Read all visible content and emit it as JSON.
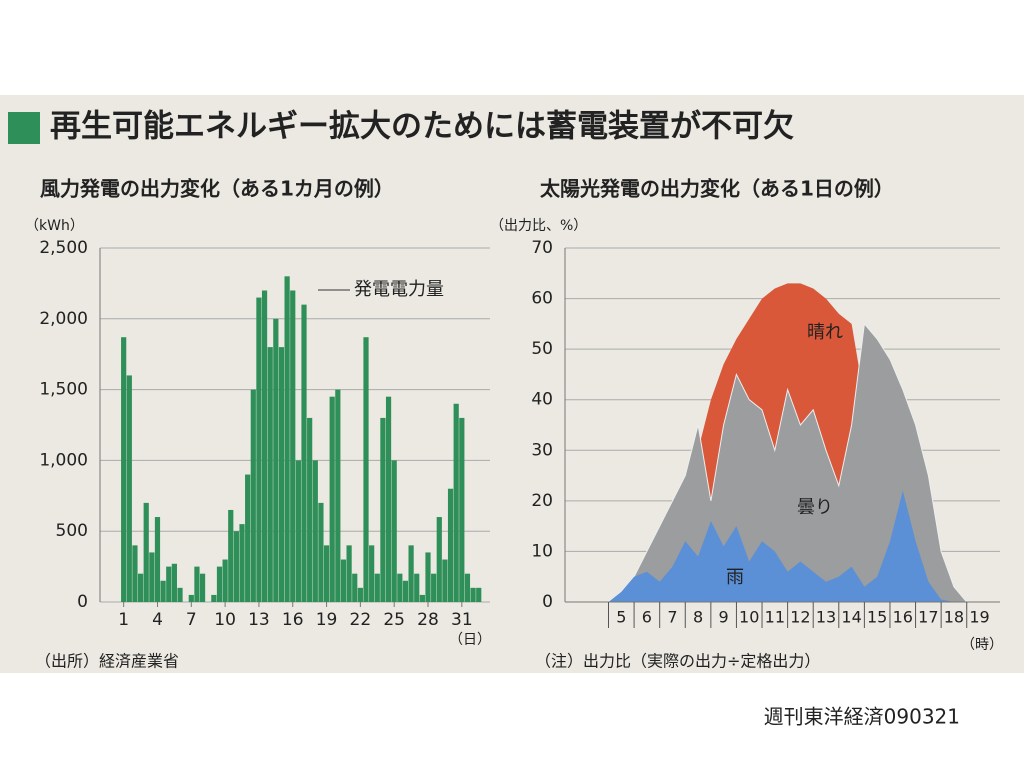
{
  "title": "再生可能エネルギー拡大のためには蓄電装置が不可欠",
  "caption": "週刊東洋経済090321",
  "chart_data": [
    {
      "type": "bar",
      "title": "風力発電の出力変化（ある1カ月の例）",
      "y_unit": "（kWh）",
      "x_unit": "（日）",
      "annotation": "発電電力量",
      "source": "（出所）経済産業省",
      "color": "#2f8f58",
      "x": [
        1,
        1.5,
        2,
        2.5,
        3,
        3.5,
        4,
        4.5,
        5,
        5.5,
        6,
        6.5,
        7,
        7.5,
        8,
        8.5,
        9,
        9.5,
        10,
        10.5,
        11,
        11.5,
        12,
        12.5,
        13,
        13.5,
        14,
        14.5,
        15,
        15.5,
        16,
        16.5,
        17,
        17.5,
        18,
        18.5,
        19,
        19.5,
        20,
        20.5,
        21,
        21.5,
        22,
        22.5,
        23,
        23.5,
        24,
        24.5,
        25,
        25.5,
        26,
        26.5,
        27,
        27.5,
        28,
        28.5,
        29,
        29.5,
        30,
        30.5,
        31,
        31.5,
        32,
        32.5,
        33
      ],
      "values": [
        1870,
        1600,
        400,
        200,
        700,
        350,
        600,
        150,
        250,
        270,
        100,
        0,
        50,
        250,
        200,
        0,
        50,
        250,
        300,
        650,
        500,
        550,
        900,
        1500,
        2150,
        2200,
        1800,
        2000,
        1800,
        2300,
        2200,
        1000,
        2100,
        1300,
        1000,
        700,
        400,
        1450,
        1500,
        300,
        400,
        200,
        100,
        1870,
        400,
        200,
        1300,
        1450,
        1000,
        200,
        150,
        400,
        200,
        50,
        350,
        200,
        600,
        300,
        800,
        1400,
        1300,
        200,
        100,
        100,
        0
      ],
      "xlim": [
        -1.1,
        33.5
      ],
      "xticks": [
        1,
        4,
        7,
        10,
        13,
        16,
        19,
        22,
        25,
        28,
        31
      ],
      "ylim": [
        0,
        2500
      ],
      "yticks": [
        0,
        500,
        {
          "value": 1000,
          "label": "1,000"
        },
        {
          "value": 1500,
          "label": "1,500"
        },
        {
          "value": 2000,
          "label": "2,000"
        },
        {
          "value": 2500,
          "label": "2,500"
        }
      ],
      "grid": true
    },
    {
      "type": "area",
      "title": "太陽光発電の出力変化（ある1日の例）",
      "y_unit": "（出力比、%）",
      "x_unit": "（時）",
      "source": "（注）出力比（実際の出力÷定格出力）",
      "x": [
        5,
        5.5,
        6,
        6.5,
        7,
        7.5,
        8,
        8.5,
        9,
        9.5,
        10,
        10.5,
        11,
        11.5,
        12,
        12.5,
        13,
        13.5,
        14,
        14.5,
        15,
        15.5,
        16,
        16.5,
        17,
        17.5,
        18,
        18.5,
        19,
        19.5
      ],
      "series": [
        {
          "name": "晴れ",
          "color": "#d9583a",
          "values": [
            0,
            1,
            3,
            6,
            10,
            14,
            20,
            30,
            40,
            47,
            52,
            56,
            60,
            62,
            63,
            63,
            62,
            60,
            57,
            55,
            40,
            30,
            20,
            12,
            6,
            3,
            1,
            0,
            0,
            0
          ]
        },
        {
          "name": "曇り",
          "color": "#9b9d9f",
          "values": [
            0,
            2,
            5,
            10,
            15,
            20,
            25,
            35,
            20,
            35,
            45,
            40,
            38,
            30,
            42,
            35,
            38,
            30,
            23,
            35,
            55,
            52,
            48,
            42,
            35,
            25,
            10,
            3,
            0,
            0
          ]
        },
        {
          "name": "雨",
          "color": "#5b8fd6",
          "values": [
            0,
            2,
            5,
            6,
            4,
            7,
            12,
            9,
            16,
            11,
            15,
            8,
            12,
            10,
            6,
            8,
            6,
            4,
            5,
            7,
            3,
            5,
            12,
            22,
            12,
            4,
            0.5,
            0,
            0,
            0
          ]
        }
      ],
      "xlim": [
        3.3,
        20.3
      ],
      "xticks": [
        5,
        6,
        7,
        8,
        9,
        10,
        11,
        12,
        13,
        14,
        15,
        16,
        17,
        18,
        19
      ],
      "ylim": [
        0,
        70
      ],
      "yticks": [
        0,
        10,
        20,
        30,
        40,
        50,
        60,
        70
      ],
      "grid": true
    }
  ]
}
